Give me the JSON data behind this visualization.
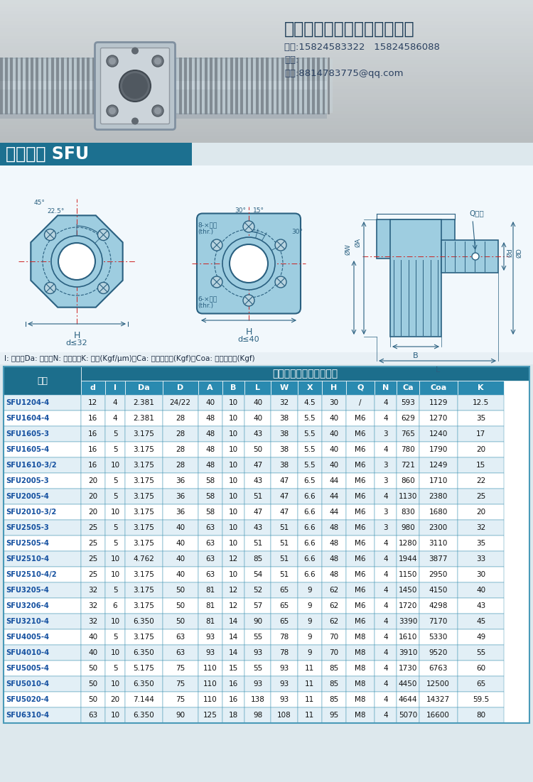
{
  "company_name": "丽水具冠自动化科技有限公司",
  "phone": "电话:15824583322   15824586088",
  "fax": "传真:",
  "email": "邮筱:8814783775@qq.com",
  "product_title": "滚珠丝杆 SFU",
  "note_line": "I: 导程、Da: 珠径、N: 珠圈数、K: 刚性(Kgf/μm)、Ca: 动额定负荷(Kgf)、Coa: 静额定负荷(Kgf)",
  "table_header_main": "滚珠丝杠、螺母之基数据",
  "columns": [
    "型号",
    "d",
    "I",
    "Da",
    "D",
    "A",
    "B",
    "L",
    "W",
    "X",
    "H",
    "Q",
    "N",
    "Ca",
    "Coa",
    "K"
  ],
  "rows": [
    [
      "SFU1204-4",
      "12",
      "4",
      "2.381",
      "24/22",
      "40",
      "10",
      "40",
      "32",
      "4.5",
      "30",
      "/",
      "4",
      "593",
      "1129",
      "12.5"
    ],
    [
      "SFU1604-4",
      "16",
      "4",
      "2.381",
      "28",
      "48",
      "10",
      "40",
      "38",
      "5.5",
      "40",
      "M6",
      "4",
      "629",
      "1270",
      "35"
    ],
    [
      "SFU1605-3",
      "16",
      "5",
      "3.175",
      "28",
      "48",
      "10",
      "43",
      "38",
      "5.5",
      "40",
      "M6",
      "3",
      "765",
      "1240",
      "17"
    ],
    [
      "SFU1605-4",
      "16",
      "5",
      "3.175",
      "28",
      "48",
      "10",
      "50",
      "38",
      "5.5",
      "40",
      "M6",
      "4",
      "780",
      "1790",
      "20"
    ],
    [
      "SFU1610-3/2",
      "16",
      "10",
      "3.175",
      "28",
      "48",
      "10",
      "47",
      "38",
      "5.5",
      "40",
      "M6",
      "3",
      "721",
      "1249",
      "15"
    ],
    [
      "SFU2005-3",
      "20",
      "5",
      "3.175",
      "36",
      "58",
      "10",
      "43",
      "47",
      "6.5",
      "44",
      "M6",
      "3",
      "860",
      "1710",
      "22"
    ],
    [
      "SFU2005-4",
      "20",
      "5",
      "3.175",
      "36",
      "58",
      "10",
      "51",
      "47",
      "6.6",
      "44",
      "M6",
      "4",
      "1130",
      "2380",
      "25"
    ],
    [
      "SFU2010-3/2",
      "20",
      "10",
      "3.175",
      "36",
      "58",
      "10",
      "47",
      "47",
      "6.6",
      "44",
      "M6",
      "3",
      "830",
      "1680",
      "20"
    ],
    [
      "SFU2505-3",
      "25",
      "5",
      "3.175",
      "40",
      "63",
      "10",
      "43",
      "51",
      "6.6",
      "48",
      "M6",
      "3",
      "980",
      "2300",
      "32"
    ],
    [
      "SFU2505-4",
      "25",
      "5",
      "3.175",
      "40",
      "63",
      "10",
      "51",
      "51",
      "6.6",
      "48",
      "M6",
      "4",
      "1280",
      "3110",
      "35"
    ],
    [
      "SFU2510-4",
      "25",
      "10",
      "4.762",
      "40",
      "63",
      "12",
      "85",
      "51",
      "6.6",
      "48",
      "M6",
      "4",
      "1944",
      "3877",
      "33"
    ],
    [
      "SFU2510-4/2",
      "25",
      "10",
      "3.175",
      "40",
      "63",
      "10",
      "54",
      "51",
      "6.6",
      "48",
      "M6",
      "4",
      "1150",
      "2950",
      "30"
    ],
    [
      "SFU3205-4",
      "32",
      "5",
      "3.175",
      "50",
      "81",
      "12",
      "52",
      "65",
      "9",
      "62",
      "M6",
      "4",
      "1450",
      "4150",
      "40"
    ],
    [
      "SFU3206-4",
      "32",
      "6",
      "3.175",
      "50",
      "81",
      "12",
      "57",
      "65",
      "9",
      "62",
      "M6",
      "4",
      "1720",
      "4298",
      "43"
    ],
    [
      "SFU3210-4",
      "32",
      "10",
      "6.350",
      "50",
      "81",
      "14",
      "90",
      "65",
      "9",
      "62",
      "M6",
      "4",
      "3390",
      "7170",
      "45"
    ],
    [
      "SFU4005-4",
      "40",
      "5",
      "3.175",
      "63",
      "93",
      "14",
      "55",
      "78",
      "9",
      "70",
      "M8",
      "4",
      "1610",
      "5330",
      "49"
    ],
    [
      "SFU4010-4",
      "40",
      "10",
      "6.350",
      "63",
      "93",
      "14",
      "93",
      "78",
      "9",
      "70",
      "M8",
      "4",
      "3910",
      "9520",
      "55"
    ],
    [
      "SFU5005-4",
      "50",
      "5",
      "5.175",
      "75",
      "110",
      "15",
      "55",
      "93",
      "11",
      "85",
      "M8",
      "4",
      "1730",
      "6763",
      "60"
    ],
    [
      "SFU5010-4",
      "50",
      "10",
      "6.350",
      "75",
      "110",
      "16",
      "93",
      "93",
      "11",
      "85",
      "M8",
      "4",
      "4450",
      "12500",
      "65"
    ],
    [
      "SFU5020-4",
      "50",
      "20",
      "7.144",
      "75",
      "110",
      "16",
      "138",
      "93",
      "11",
      "85",
      "M8",
      "4",
      "4644",
      "14327",
      "59.5"
    ],
    [
      "SFU6310-4",
      "63",
      "10",
      "6.350",
      "90",
      "125",
      "18",
      "98",
      "108",
      "11",
      "95",
      "M8",
      "4",
      "5070",
      "16600",
      "80"
    ]
  ],
  "header_bg": "#1c6e8c",
  "subheader_bg": "#2a8ab0",
  "row_bg_even": "#e2eff6",
  "row_bg_odd": "#ffffff",
  "header_text_color": "#ffffff",
  "model_text_color": "#1450a0",
  "border_color": "#4a9ab8",
  "diagram_fill": "#9ecde0",
  "diagram_line": "#2a6080",
  "diagram_bg": "#f2f8fc",
  "photo_bg_left": "#b8c8d0",
  "photo_bg_right": "#d8e4e8",
  "title_bar_color": "#1c7090"
}
